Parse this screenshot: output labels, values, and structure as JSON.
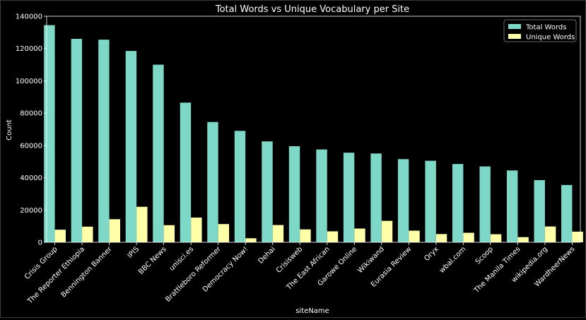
{
  "chart_data": {
    "type": "bar",
    "title": "Total Words vs Unique Vocabulary per Site",
    "xlabel": "siteName",
    "ylabel": "Count",
    "ylim": [
      0,
      140000
    ],
    "yticks": [
      0,
      20000,
      40000,
      60000,
      80000,
      100000,
      120000,
      140000
    ],
    "grid": false,
    "legend_position": "top-right",
    "categories": [
      "Crisis Group",
      "The Reporter Ethiopia",
      "Bennington Banner",
      "IPIS",
      "BBC News",
      "unisci.es",
      "Brattleboro Reformer",
      "Democracy Now!",
      "Dehai",
      "Crisisweb",
      "The East African",
      "Garowe Online",
      "Wikiwand",
      "Eurasia Review",
      "Oryx",
      "wbal.com",
      "Scoop",
      "The Manila Times",
      "wikipedia.org",
      "WardheerNews"
    ],
    "series": [
      {
        "name": "Total Words",
        "color": "#7dd8c8",
        "values": [
          134500,
          126000,
          125500,
          118500,
          110000,
          86500,
          74500,
          69000,
          62500,
          59500,
          57500,
          55500,
          55000,
          51500,
          50500,
          48500,
          47000,
          44500,
          38500,
          35500
        ]
      },
      {
        "name": "Unique Words",
        "color": "#ffffa8",
        "values": [
          7800,
          9700,
          14300,
          22000,
          10600,
          15300,
          11300,
          2500,
          10700,
          8000,
          6800,
          8500,
          13300,
          7200,
          5100,
          5900,
          5000,
          3200,
          9800,
          6600
        ]
      }
    ]
  }
}
